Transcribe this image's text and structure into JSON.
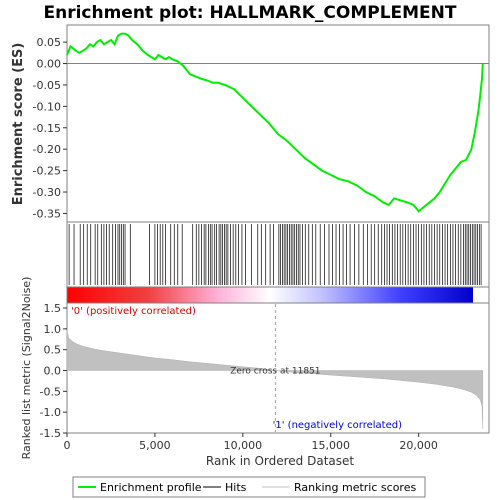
{
  "chart_data": {
    "type": "line",
    "title": "Enrichment plot: HALLMARK_COMPLEMENT",
    "es_panel": {
      "ylabel": "Enrichment score (ES)",
      "ylim": [
        -0.37,
        0.09
      ],
      "yticks": [
        0.05,
        0.0,
        -0.05,
        -0.1,
        -0.15,
        -0.2,
        -0.25,
        -0.3,
        -0.35
      ],
      "ytick_labels": [
        "0.05",
        "0.00",
        "-0.05",
        "-0.10",
        "-0.15",
        "-0.20",
        "-0.25",
        "-0.30",
        "-0.35"
      ],
      "series": [
        {
          "name": "Enrichment profile",
          "color": "#00ee00",
          "x": [
            0,
            200,
            500,
            700,
            900,
            1100,
            1300,
            1500,
            1700,
            1900,
            2100,
            2300,
            2500,
            2700,
            2900,
            3100,
            3300,
            3500,
            3700,
            4000,
            4300,
            4600,
            5000,
            5200,
            5400,
            5600,
            5800,
            6000,
            6300,
            6600,
            7000,
            7300,
            7600,
            8000,
            8300,
            8600,
            9000,
            9500,
            10000,
            10500,
            11000,
            11500,
            12000,
            12500,
            13000,
            13500,
            14000,
            14500,
            15000,
            15500,
            16000,
            16500,
            17000,
            17500,
            18000,
            18300,
            18600,
            19000,
            19400,
            19700,
            20000,
            20300,
            20600,
            20900,
            21200,
            21500,
            21800,
            22100,
            22400,
            22700,
            23000,
            23200,
            23400,
            23500,
            23600,
            23650
          ],
          "y": [
            0.02,
            0.04,
            0.03,
            0.025,
            0.03,
            0.035,
            0.045,
            0.04,
            0.05,
            0.055,
            0.045,
            0.05,
            0.055,
            0.045,
            0.065,
            0.07,
            0.07,
            0.065,
            0.055,
            0.045,
            0.03,
            0.02,
            0.01,
            0.02,
            0.015,
            0.01,
            0.015,
            0.01,
            0.005,
            -0.005,
            -0.025,
            -0.03,
            -0.035,
            -0.04,
            -0.045,
            -0.045,
            -0.05,
            -0.06,
            -0.08,
            -0.1,
            -0.12,
            -0.14,
            -0.165,
            -0.18,
            -0.2,
            -0.22,
            -0.235,
            -0.25,
            -0.26,
            -0.27,
            -0.275,
            -0.285,
            -0.3,
            -0.31,
            -0.325,
            -0.33,
            -0.315,
            -0.32,
            -0.325,
            -0.33,
            -0.345,
            -0.335,
            -0.325,
            -0.315,
            -0.3,
            -0.28,
            -0.26,
            -0.245,
            -0.23,
            -0.225,
            -0.2,
            -0.16,
            -0.11,
            -0.075,
            -0.035,
            0.0
          ]
        }
      ]
    },
    "hits": [
      120,
      400,
      750,
      950,
      1150,
      1350,
      1600,
      1750,
      1950,
      2100,
      2250,
      2400,
      2600,
      2750,
      2900,
      3000,
      3100,
      3200,
      3300,
      3600,
      4700,
      5000,
      5150,
      5300,
      5450,
      5600,
      5900,
      6100,
      6300,
      6550,
      7150,
      7350,
      7500,
      7650,
      7800,
      7900,
      8050,
      8150,
      8250,
      8400,
      8500,
      8650,
      8750,
      8850,
      8950,
      9050,
      9150,
      9300,
      9450,
      9600,
      9750,
      9950,
      10150,
      10500,
      10850,
      11050,
      11300,
      11550,
      11750,
      12050,
      12150,
      12250,
      12350,
      12450,
      12550,
      12650,
      12750,
      12850,
      12950,
      13050,
      13150,
      13250,
      13400,
      13550,
      13750,
      13950,
      14150,
      14400,
      14650,
      14900,
      15100,
      15300,
      15500,
      15700,
      15900,
      16100,
      16350,
      16600,
      16850,
      17100,
      17300,
      17500,
      17700,
      17900,
      18050,
      18200,
      18350,
      18500,
      18650,
      18800,
      18950,
      19100,
      19250,
      19400,
      19550,
      19700,
      19850,
      20000,
      20150,
      20300,
      20450,
      20600,
      20750,
      20900,
      21050,
      21200,
      21350,
      21500,
      21650,
      21800,
      21950,
      22100,
      22250,
      22400,
      22550,
      22650,
      22750,
      22850,
      22950,
      23050,
      23150,
      23250,
      23350,
      23450,
      23550
    ],
    "hits_legend": "Hits",
    "metric_panel": {
      "ylabel": "Ranked list metric (Signal2Noise)",
      "xlabel": "Rank in Ordered Dataset",
      "ylim": [
        -1.5,
        1.5
      ],
      "yticks": [
        1.5,
        1.0,
        0.5,
        0.0,
        -0.5,
        -1.0,
        -1.5
      ],
      "ytick_labels": [
        "1.5",
        "1.0",
        "0.5",
        "0.0",
        "-0.5",
        "-1.0",
        "-1.5"
      ],
      "xlim": [
        0,
        24000
      ],
      "xticks": [
        0,
        5000,
        10000,
        15000,
        20000
      ],
      "xtick_labels": [
        "0",
        "5,000",
        "10,000",
        "15,000",
        "20,000"
      ],
      "fill_color": "#c0c0c0",
      "series": [
        {
          "name": "Ranking metric scores",
          "x": [
            0,
            100,
            300,
            600,
            1000,
            1500,
            2000,
            3000,
            4000,
            5000,
            6000,
            7000,
            8000,
            9000,
            10000,
            11000,
            11851,
            13000,
            14000,
            15000,
            16000,
            17000,
            18000,
            19000,
            20000,
            21000,
            22000,
            22500,
            23000,
            23300,
            23500,
            23600,
            23650
          ],
          "y": [
            0.95,
            0.78,
            0.7,
            0.63,
            0.57,
            0.52,
            0.48,
            0.42,
            0.36,
            0.3,
            0.26,
            0.21,
            0.17,
            0.13,
            0.09,
            0.05,
            0.0,
            -0.05,
            -0.08,
            -0.11,
            -0.14,
            -0.17,
            -0.2,
            -0.24,
            -0.28,
            -0.33,
            -0.4,
            -0.45,
            -0.52,
            -0.6,
            -0.7,
            -0.85,
            -1.4
          ]
        }
      ],
      "zero_cross_label": "Zero cross at 11851",
      "zero_cross": 11851,
      "pos_label": "'0' (positively correlated)",
      "neg_label": "'1' (negatively correlated)",
      "pos_label_color": "#dd0000",
      "neg_label_color": "#0000dd"
    },
    "n_genes": 23650,
    "legend": {
      "placement": "bottom",
      "items": [
        {
          "label": "Enrichment profile",
          "color": "#00ee00"
        },
        {
          "label": "Hits",
          "color": "#000000"
        },
        {
          "label": "Ranking metric scores",
          "color": "#c0c0c0"
        }
      ]
    }
  }
}
